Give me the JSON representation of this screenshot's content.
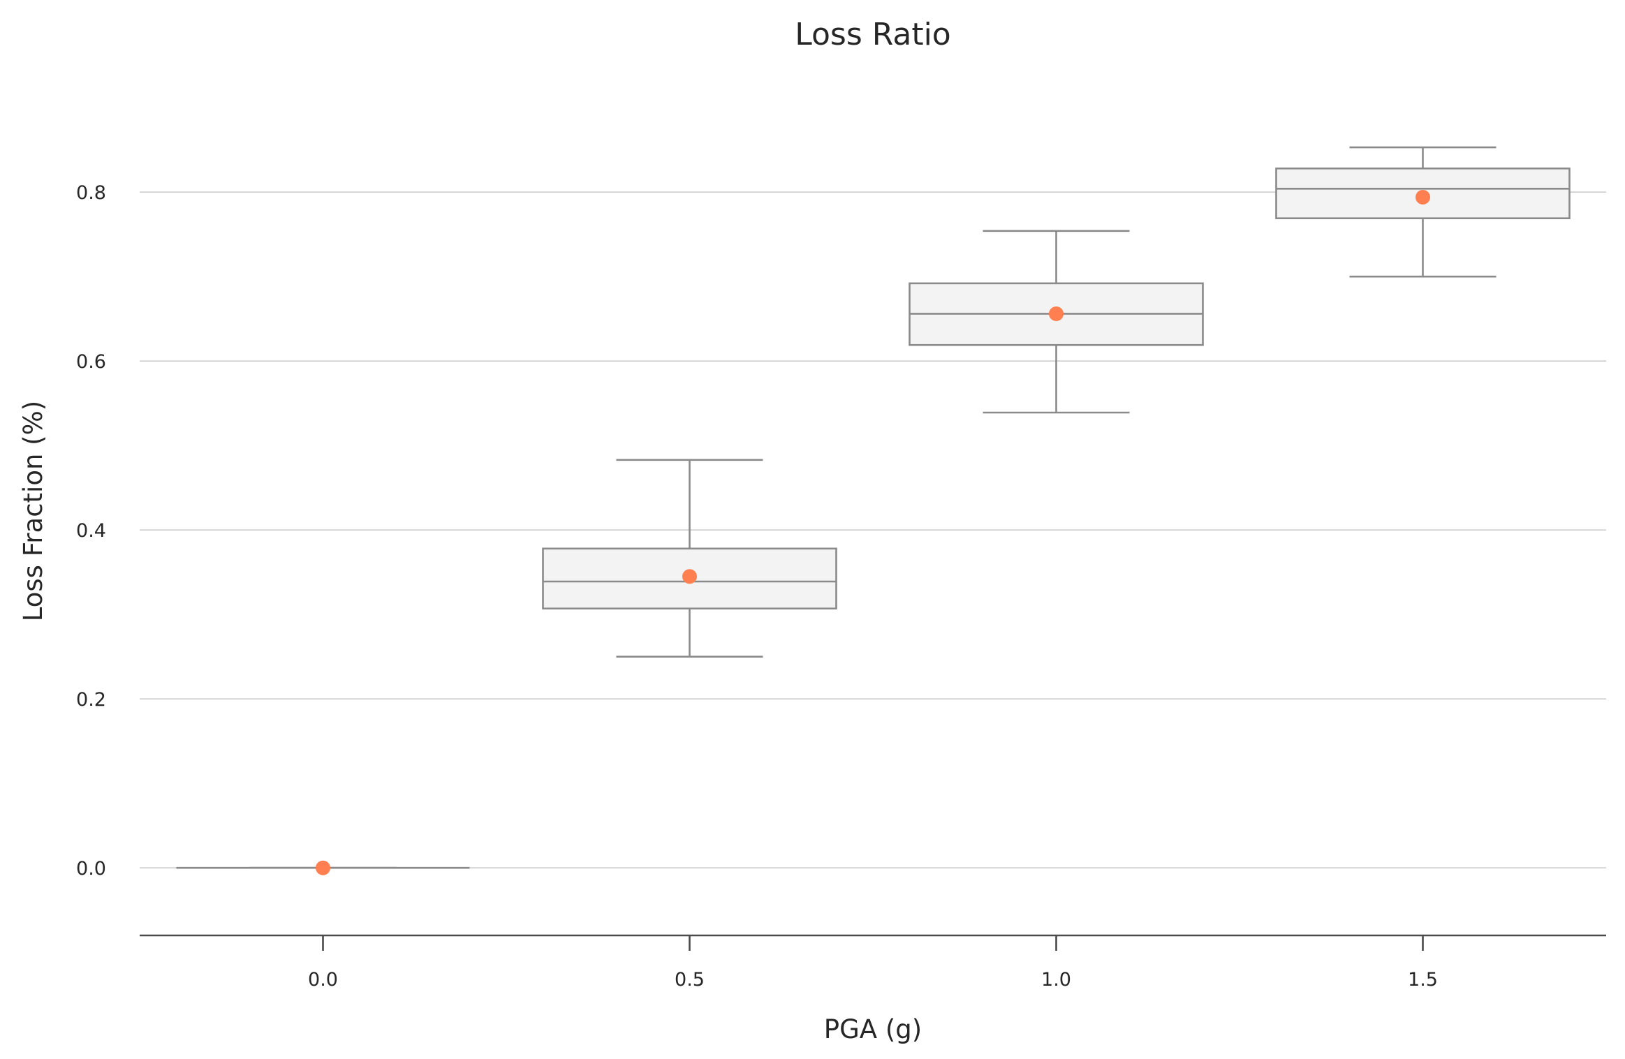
{
  "chart_data": {
    "type": "box",
    "title": "Loss Ratio",
    "xlabel": "PGA (g)",
    "ylabel": "Loss Fraction (%)",
    "x_ticks": [
      "0.0",
      "0.5",
      "1.0",
      "1.5"
    ],
    "y_ticks": [
      "0.0",
      "0.2",
      "0.4",
      "0.6",
      "0.8"
    ],
    "xlim": [
      -0.25,
      1.75
    ],
    "ylim": [
      -0.08,
      0.92
    ],
    "grid": "horizontal",
    "box_width": 0.4,
    "colors": {
      "box_fill": "#f3f3f3",
      "box_edge": "#8a8a8a",
      "mean_marker": "#ff7f50",
      "grid": "#cccccc",
      "axis": "#4a4a4a"
    },
    "boxes": [
      {
        "x": 0.0,
        "whisker_low": 0.0,
        "q1": 0.0,
        "median": 0.0,
        "q3": 0.0,
        "whisker_high": 0.0,
        "mean": 0.0
      },
      {
        "x": 0.5,
        "whisker_low": 0.25,
        "q1": 0.307,
        "median": 0.339,
        "q3": 0.378,
        "whisker_high": 0.483,
        "mean": 0.345
      },
      {
        "x": 1.0,
        "whisker_low": 0.539,
        "q1": 0.619,
        "median": 0.656,
        "q3": 0.692,
        "whisker_high": 0.754,
        "mean": 0.656
      },
      {
        "x": 1.5,
        "whisker_low": 0.7,
        "q1": 0.769,
        "median": 0.804,
        "q3": 0.828,
        "whisker_high": 0.853,
        "mean": 0.794
      }
    ]
  }
}
